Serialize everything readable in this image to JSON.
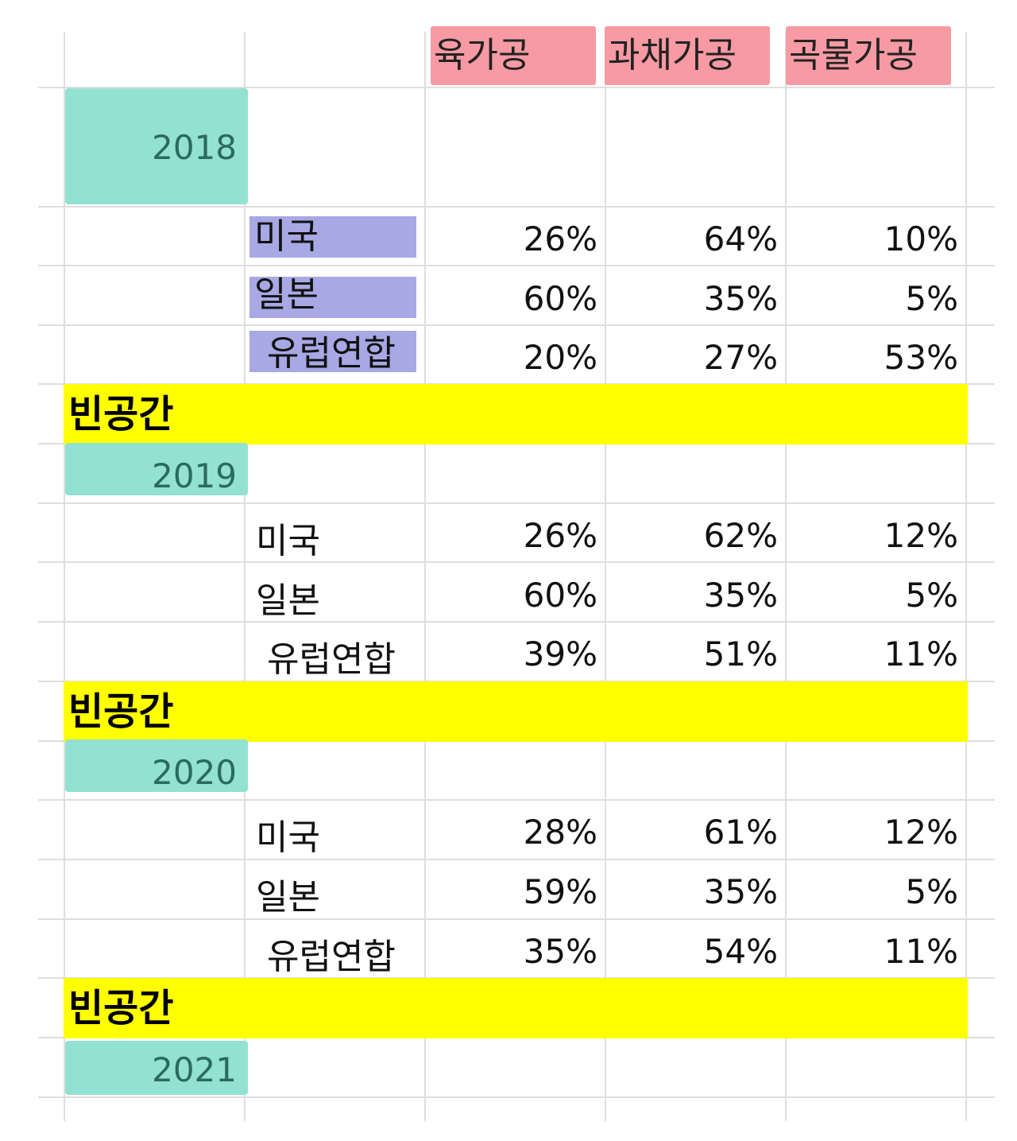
{
  "headers": [
    "육가공",
    "과채가공",
    "곡물가공"
  ],
  "blank_label": "빈공간",
  "years": [
    {
      "year": "2018",
      "rows": [
        {
          "country": "미국",
          "values": [
            "26%",
            "64%",
            "10%"
          ]
        },
        {
          "country": "일본",
          "values": [
            "60%",
            "35%",
            "5%"
          ]
        },
        {
          "country": "유럽연합",
          "values": [
            "20%",
            "27%",
            "53%"
          ]
        }
      ]
    },
    {
      "year": "2019",
      "rows": [
        {
          "country": "미국",
          "values": [
            "26%",
            "62%",
            "12%"
          ]
        },
        {
          "country": "일본",
          "values": [
            "60%",
            "35%",
            "5%"
          ]
        },
        {
          "country": "유럽연합",
          "values": [
            "39%",
            "51%",
            "11%"
          ]
        }
      ]
    },
    {
      "year": "2020",
      "rows": [
        {
          "country": "미국",
          "values": [
            "28%",
            "61%",
            "12%"
          ]
        },
        {
          "country": "일본",
          "values": [
            "59%",
            "35%",
            "5%"
          ]
        },
        {
          "country": "유럽연합",
          "values": [
            "35%",
            "54%",
            "11%"
          ]
        }
      ]
    },
    {
      "year": "2021",
      "rows": []
    }
  ],
  "colors": {
    "header_bg": "#f79aa3",
    "year_bg": "#92e1d2",
    "country_highlight_bg": "#a7a8e4",
    "blank_bg": "#ffff00",
    "grid": "#dedede"
  }
}
